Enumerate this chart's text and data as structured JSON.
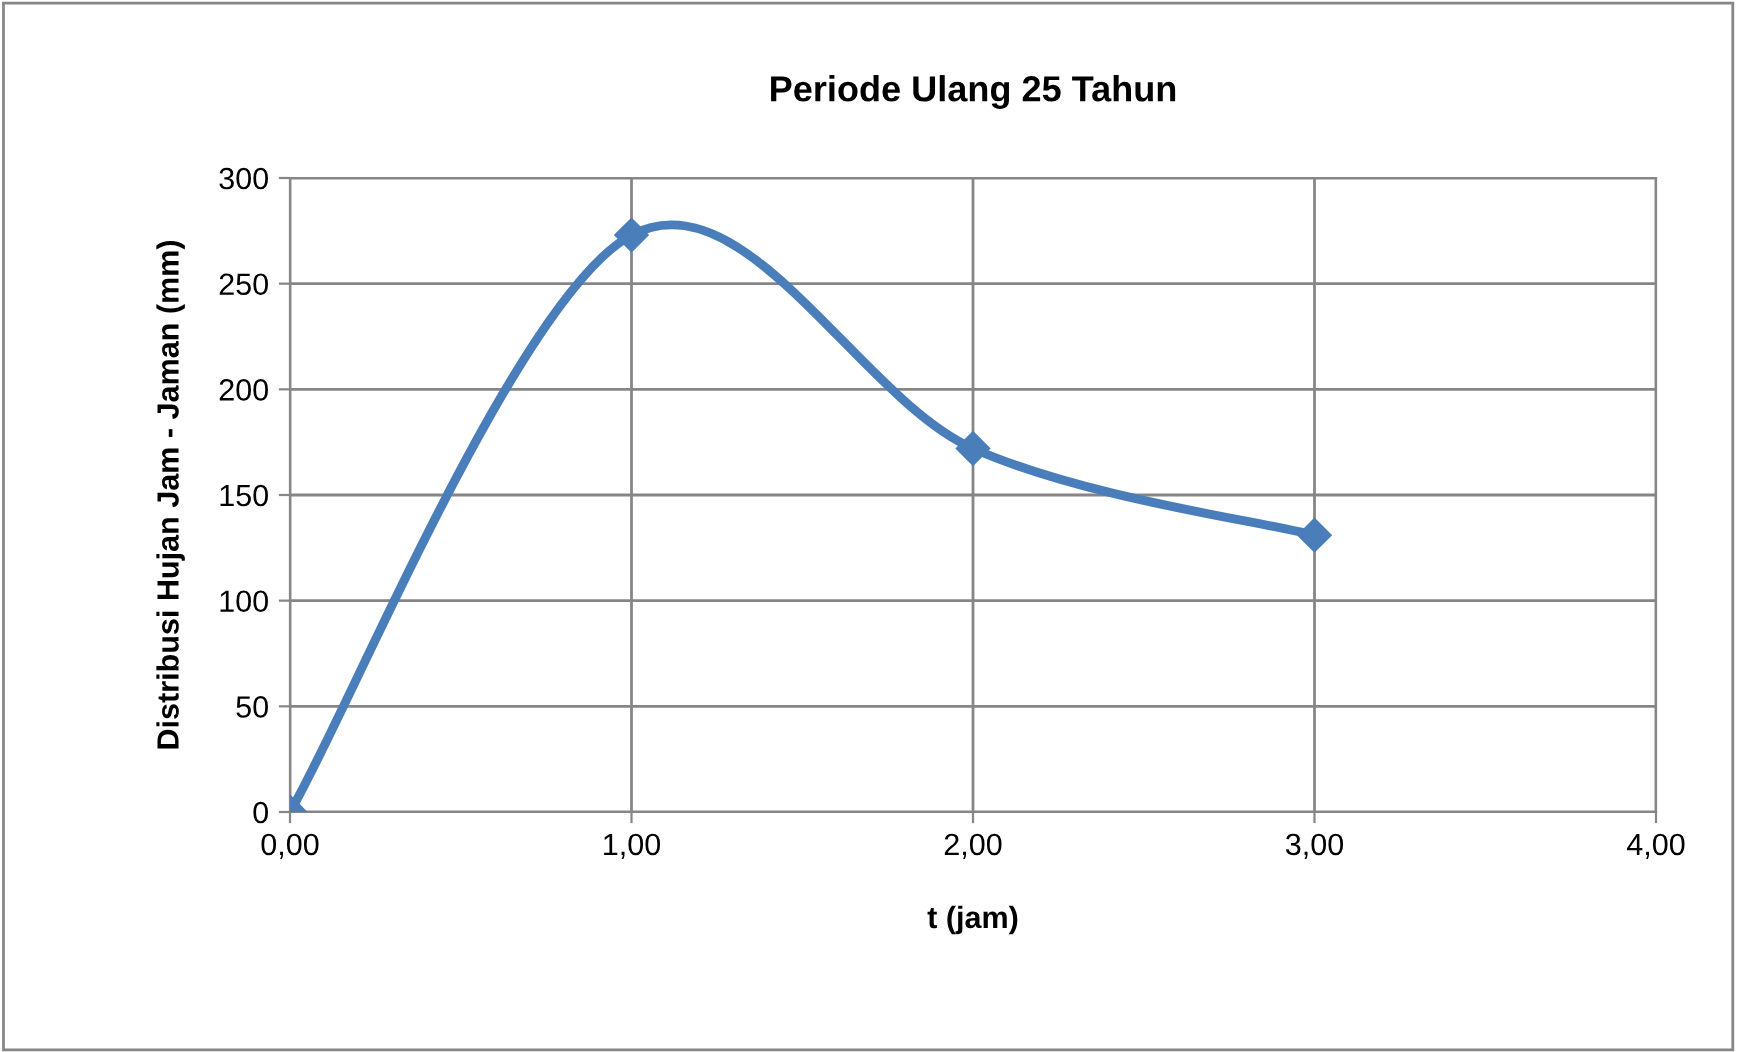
{
  "chart_data": {
    "type": "line",
    "title": "Periode Ulang 25 Tahun",
    "xlabel": "t (jam)",
    "ylabel": "Distribusi Hujan Jam - Jaman (mm)",
    "x": [
      0,
      1,
      2,
      3
    ],
    "series": [
      {
        "color": "#4a7ebb",
        "values": [
          0,
          273,
          172,
          131
        ]
      }
    ],
    "xlim": [
      0,
      4
    ],
    "ylim": [
      0,
      300
    ],
    "xticks": [
      {
        "value": 0,
        "label": "0,00"
      },
      {
        "value": 1,
        "label": "1,00"
      },
      {
        "value": 2,
        "label": "2,00"
      },
      {
        "value": 3,
        "label": "3,00"
      },
      {
        "value": 4,
        "label": "4,00"
      }
    ],
    "yticks": [
      0,
      50,
      100,
      150,
      200,
      250,
      300
    ],
    "grid": true,
    "legend": false,
    "marker": "diamond",
    "line_style": "solid"
  }
}
